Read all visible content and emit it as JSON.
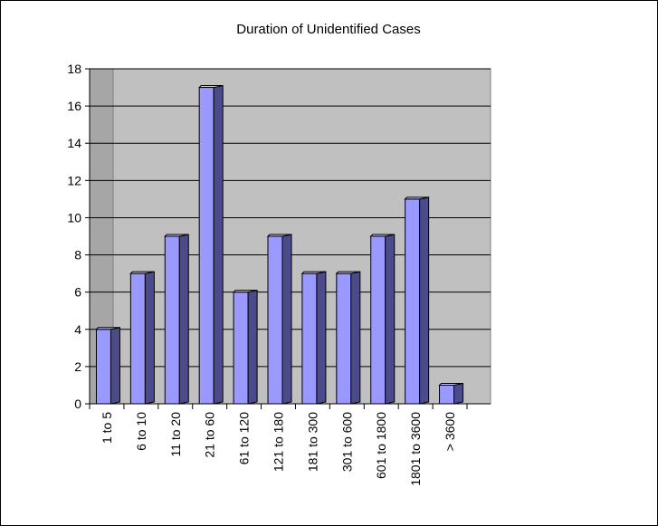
{
  "chart_data": {
    "type": "bar",
    "title": "Duration of Unidentified Cases",
    "xlabel": "",
    "ylabel": "",
    "categories": [
      "1 to 5",
      "6 to 10",
      "11 to 20",
      "21 to 60",
      "61 to 120",
      "121 to 180",
      "181 to 300",
      "301 to 600",
      "601 to 1800",
      "1801 to 3600",
      "> 3600"
    ],
    "values": [
      4,
      7,
      9,
      17,
      6,
      9,
      7,
      7,
      9,
      11,
      1
    ],
    "ylim": [
      0,
      18
    ],
    "yticks": [
      0,
      2,
      4,
      6,
      8,
      10,
      12,
      14,
      16,
      18
    ],
    "grid": true,
    "legend": "none",
    "style": "3d-column",
    "colors": {
      "bar_front": "#9999ff",
      "bar_side": "#4b4b8c",
      "bar_top": "#c8c8ff",
      "plot_wall": "#c0c0c0",
      "wall_side": "#a6a6a6",
      "gridline": "#000000"
    }
  }
}
